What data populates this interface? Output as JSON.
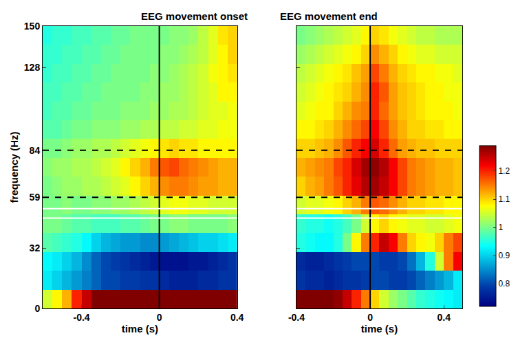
{
  "chart_data": [
    {
      "type": "heatmap",
      "title": "EEG movement onset",
      "x_label": "time (s)",
      "y_label": "frequency (Hz)",
      "x": [
        -0.575,
        -0.525,
        -0.475,
        -0.425,
        -0.375,
        -0.325,
        -0.275,
        -0.225,
        -0.175,
        -0.125,
        -0.075,
        -0.025,
        0.025,
        0.075,
        0.125,
        0.175,
        0.225,
        0.275,
        0.325,
        0.375
      ],
      "y": [
        5,
        15,
        25,
        35,
        45,
        55,
        65,
        75,
        85,
        95,
        105,
        115,
        125,
        135,
        145
      ],
      "cells": [
        [
          1.05,
          1.08,
          1.12,
          1.2,
          1.25,
          1.3,
          1.35,
          1.35,
          1.35,
          1.35,
          1.35,
          1.35,
          1.35,
          1.35,
          1.35,
          1.35,
          1.35,
          1.35,
          1.35,
          1.35
        ],
        [
          0.92,
          0.9,
          0.88,
          0.86,
          0.84,
          0.82,
          0.8,
          0.8,
          0.79,
          0.79,
          0.78,
          0.78,
          0.77,
          0.76,
          0.76,
          0.76,
          0.77,
          0.77,
          0.78,
          0.78
        ],
        [
          0.93,
          0.92,
          0.9,
          0.88,
          0.85,
          0.82,
          0.8,
          0.79,
          0.78,
          0.77,
          0.76,
          0.75,
          0.74,
          0.74,
          0.74,
          0.75,
          0.75,
          0.76,
          0.77,
          0.78
        ],
        [
          0.98,
          0.97,
          0.96,
          0.95,
          0.93,
          0.9,
          0.88,
          0.87,
          0.86,
          0.86,
          0.85,
          0.85,
          0.86,
          0.87,
          0.88,
          0.89,
          0.9,
          0.9,
          0.91,
          0.92
        ],
        [
          1.0,
          1.0,
          0.99,
          0.98,
          0.98,
          0.97,
          0.97,
          0.97,
          0.98,
          0.98,
          0.99,
          1.0,
          1.0,
          1.01,
          1.01,
          1.0,
          1.0,
          1.0,
          1.0,
          1.01
        ],
        [
          1.0,
          1.0,
          1.01,
          1.0,
          1.0,
          1.01,
          1.01,
          1.02,
          1.02,
          1.03,
          1.04,
          1.05,
          1.06,
          1.07,
          1.07,
          1.06,
          1.06,
          1.05,
          1.05,
          1.05
        ],
        [
          1.0,
          1.01,
          1.02,
          1.02,
          1.03,
          1.03,
          1.04,
          1.05,
          1.06,
          1.08,
          1.1,
          1.12,
          1.14,
          1.15,
          1.15,
          1.14,
          1.13,
          1.13,
          1.12,
          1.12
        ],
        [
          1.01,
          1.02,
          1.02,
          1.03,
          1.03,
          1.04,
          1.05,
          1.06,
          1.08,
          1.1,
          1.12,
          1.15,
          1.17,
          1.18,
          1.16,
          1.15,
          1.14,
          1.13,
          1.12,
          1.12
        ],
        [
          1.0,
          1.0,
          1.01,
          1.02,
          1.02,
          1.03,
          1.03,
          1.04,
          1.05,
          1.06,
          1.07,
          1.08,
          1.09,
          1.1,
          1.09,
          1.09,
          1.08,
          1.08,
          1.08,
          1.08
        ],
        [
          0.98,
          0.98,
          0.99,
          1.0,
          1.0,
          1.01,
          1.01,
          1.01,
          1.02,
          1.02,
          1.03,
          1.03,
          1.04,
          1.04,
          1.05,
          1.05,
          1.06,
          1.06,
          1.07,
          1.07
        ],
        [
          0.97,
          0.98,
          0.98,
          0.99,
          0.99,
          1.0,
          1.0,
          1.0,
          1.01,
          1.01,
          1.01,
          1.02,
          1.02,
          1.03,
          1.03,
          1.04,
          1.05,
          1.06,
          1.06,
          1.07
        ],
        [
          0.97,
          0.97,
          0.98,
          0.98,
          0.99,
          0.99,
          1.0,
          1.0,
          1.0,
          1.0,
          1.01,
          1.01,
          1.02,
          1.02,
          1.03,
          1.04,
          1.05,
          1.06,
          1.08,
          1.08
        ],
        [
          0.96,
          0.97,
          0.97,
          0.98,
          0.98,
          0.99,
          0.99,
          1.0,
          1.0,
          1.0,
          1.0,
          1.01,
          1.01,
          1.02,
          1.03,
          1.04,
          1.05,
          1.07,
          1.08,
          1.09
        ],
        [
          0.96,
          0.96,
          0.97,
          0.97,
          0.98,
          0.98,
          0.99,
          0.99,
          1.0,
          1.0,
          1.0,
          1.0,
          1.01,
          1.01,
          1.02,
          1.03,
          1.04,
          1.06,
          1.08,
          1.1
        ],
        [
          0.95,
          0.96,
          0.96,
          0.97,
          0.97,
          0.98,
          0.98,
          0.99,
          0.99,
          1.0,
          1.0,
          1.0,
          1.0,
          1.01,
          1.01,
          1.02,
          1.04,
          1.06,
          1.09,
          1.1
        ]
      ],
      "xlim": [
        -0.6,
        0.4
      ],
      "xticks": [
        -0.4,
        0,
        0.4
      ],
      "ylim": [
        0,
        150
      ],
      "yticks": [
        0,
        32,
        59,
        84,
        128,
        150
      ],
      "zlim": [
        0.72,
        1.29
      ],
      "vline": 0,
      "dashed_lines": [
        59,
        84
      ],
      "white_lines": [
        48,
        53
      ]
    },
    {
      "type": "heatmap",
      "title": "EEG movement end",
      "x_label": "time (s)",
      "x": [
        -0.375,
        -0.325,
        -0.275,
        -0.225,
        -0.175,
        -0.125,
        -0.075,
        -0.025,
        0.025,
        0.075,
        0.125,
        0.175,
        0.225,
        0.275,
        0.325,
        0.375,
        0.425,
        0.475
      ],
      "y": [
        5,
        15,
        25,
        35,
        45,
        55,
        65,
        75,
        85,
        95,
        105,
        115,
        125,
        135,
        145
      ],
      "cells": [
        [
          1.35,
          1.35,
          1.35,
          1.3,
          1.28,
          1.25,
          1.2,
          1.15,
          1.1,
          1.05,
          1.02,
          1.0,
          0.98,
          0.96,
          0.95,
          0.94,
          0.93,
          0.92
        ],
        [
          0.78,
          0.77,
          0.77,
          0.76,
          0.77,
          0.78,
          0.78,
          0.79,
          0.8,
          0.8,
          0.79,
          0.79,
          0.8,
          0.82,
          0.84,
          0.86,
          0.88,
          0.92
        ],
        [
          0.77,
          0.76,
          0.76,
          0.77,
          0.78,
          0.79,
          0.8,
          0.8,
          0.8,
          0.79,
          0.79,
          0.8,
          0.83,
          0.88,
          0.95,
          1.05,
          1.15,
          1.22
        ],
        [
          0.95,
          0.94,
          0.93,
          0.93,
          0.95,
          1.0,
          1.08,
          1.15,
          1.2,
          1.25,
          1.22,
          1.15,
          1.1,
          1.08,
          1.07,
          1.1,
          1.15,
          1.18
        ],
        [
          0.96,
          0.95,
          0.95,
          0.94,
          0.95,
          0.97,
          1.0,
          1.05,
          1.08,
          1.1,
          1.08,
          1.07,
          1.06,
          1.06,
          1.05,
          1.05,
          1.06,
          1.07
        ],
        [
          1.05,
          1.06,
          1.06,
          1.07,
          1.08,
          1.1,
          1.12,
          1.15,
          1.17,
          1.16,
          1.14,
          1.12,
          1.1,
          1.1,
          1.09,
          1.09,
          1.08,
          1.08
        ],
        [
          1.1,
          1.12,
          1.13,
          1.15,
          1.17,
          1.2,
          1.23,
          1.26,
          1.27,
          1.25,
          1.22,
          1.18,
          1.15,
          1.14,
          1.13,
          1.12,
          1.12,
          1.11
        ],
        [
          1.12,
          1.13,
          1.14,
          1.15,
          1.18,
          1.2,
          1.24,
          1.27,
          1.28,
          1.26,
          1.22,
          1.18,
          1.15,
          1.14,
          1.13,
          1.12,
          1.12,
          1.11
        ],
        [
          1.1,
          1.1,
          1.11,
          1.12,
          1.14,
          1.17,
          1.2,
          1.22,
          1.24,
          1.2,
          1.16,
          1.13,
          1.12,
          1.11,
          1.11,
          1.1,
          1.1,
          1.1
        ],
        [
          1.08,
          1.08,
          1.09,
          1.1,
          1.12,
          1.14,
          1.16,
          1.18,
          1.22,
          1.18,
          1.14,
          1.12,
          1.1,
          1.1,
          1.09,
          1.09,
          1.08,
          1.08
        ],
        [
          1.06,
          1.07,
          1.08,
          1.08,
          1.1,
          1.12,
          1.14,
          1.15,
          1.2,
          1.16,
          1.13,
          1.11,
          1.1,
          1.09,
          1.08,
          1.08,
          1.08,
          1.07
        ],
        [
          1.05,
          1.06,
          1.07,
          1.08,
          1.09,
          1.1,
          1.12,
          1.14,
          1.2,
          1.17,
          1.13,
          1.11,
          1.1,
          1.09,
          1.08,
          1.08,
          1.07,
          1.07
        ],
        [
          1.04,
          1.05,
          1.06,
          1.07,
          1.08,
          1.09,
          1.11,
          1.13,
          1.18,
          1.15,
          1.12,
          1.1,
          1.09,
          1.08,
          1.08,
          1.07,
          1.07,
          1.06
        ],
        [
          1.02,
          1.03,
          1.04,
          1.05,
          1.06,
          1.07,
          1.08,
          1.1,
          1.14,
          1.12,
          1.1,
          1.08,
          1.07,
          1.06,
          1.06,
          1.05,
          1.05,
          1.05
        ],
        [
          1.0,
          1.01,
          1.02,
          1.03,
          1.04,
          1.05,
          1.06,
          1.08,
          1.1,
          1.09,
          1.07,
          1.06,
          1.05,
          1.04,
          1.04,
          1.03,
          1.03,
          1.03
        ]
      ],
      "xlim": [
        -0.4,
        0.5
      ],
      "xticks": [
        -0.4,
        0,
        0.4
      ],
      "ylim": [
        0,
        150
      ],
      "yticks": [
        0,
        32,
        59,
        84,
        128,
        150
      ],
      "tick_labels": "x",
      "zlim": [
        0.72,
        1.29
      ],
      "zticks": [
        0.8,
        0.9,
        1,
        1.1,
        1.2
      ],
      "vline": 0,
      "dashed_lines": [
        59,
        84
      ],
      "white_lines": [
        48,
        53
      ]
    }
  ]
}
